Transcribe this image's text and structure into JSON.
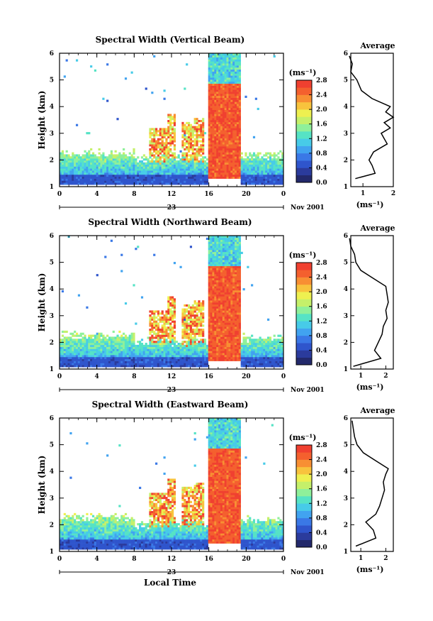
{
  "colorscale": {
    "colors": [
      "#23296b",
      "#2b3b9c",
      "#2f55cc",
      "#3a78e6",
      "#41a3f0",
      "#47cbe8",
      "#56e3c5",
      "#8ff09a",
      "#c5f06a",
      "#eef050",
      "#f8c33d",
      "#f88f33",
      "#f4602e",
      "#f04030"
    ],
    "edges": [
      0.0,
      0.2,
      0.4,
      0.6,
      0.8,
      1.0,
      1.2,
      1.4,
      1.6,
      1.8,
      2.0,
      2.2,
      2.4,
      2.6,
      2.8
    ]
  },
  "axis_labels": {
    "height": "Height (km)",
    "local_time": "Local Time",
    "date_day": "23",
    "date_month_year": "Nov 2001",
    "unit": "(ms⁻¹)",
    "average_title": "Average"
  },
  "chart_data": [
    {
      "type": "heatmap",
      "title": "Spectral Width (Vertical Beam)",
      "xlabel": "",
      "ylabel": "Height (km)",
      "x_range_hours": [
        0,
        24
      ],
      "x_ticks": [
        "0",
        "4",
        "8",
        "12",
        "16",
        "20",
        "0"
      ],
      "y_range_km": [
        1,
        6
      ],
      "y_ticks": [
        "1",
        "2",
        "3",
        "4",
        "5",
        "6"
      ],
      "z_range_ms": [
        0.0,
        2.8
      ],
      "colorbar_unit": "(ms⁻¹)",
      "colorbar_ticks": [
        "0.0",
        "0.4",
        "0.8",
        "1.2",
        "1.6",
        "2.0",
        "2.4",
        "2.8"
      ],
      "date_label": "23",
      "date_right_label": "Nov 2001",
      "profile": {
        "title": "Average",
        "xlabel": "(ms⁻¹)",
        "x_ticks": [
          "1",
          "2"
        ],
        "x_range": [
          0.6,
          2.0
        ],
        "height_km": [
          1.3,
          1.5,
          1.8,
          2.0,
          2.3,
          2.6,
          2.8,
          3.0,
          3.2,
          3.4,
          3.6,
          3.8,
          4.0,
          4.3,
          4.6,
          5.0,
          5.3,
          5.6,
          5.9
        ],
        "width_ms": [
          0.75,
          1.4,
          1.3,
          1.2,
          1.35,
          1.8,
          1.7,
          1.6,
          1.9,
          1.7,
          2.0,
          1.75,
          1.9,
          1.3,
          0.95,
          0.8,
          0.6,
          0.65,
          0.55
        ]
      }
    },
    {
      "type": "heatmap",
      "title": "Spectral Width (Northward Beam)",
      "xlabel": "",
      "ylabel": "Height (km)",
      "x_range_hours": [
        0,
        24
      ],
      "x_ticks": [
        "0",
        "4",
        "8",
        "12",
        "16",
        "20",
        "0"
      ],
      "y_range_km": [
        1,
        6
      ],
      "y_ticks": [
        "1",
        "2",
        "3",
        "4",
        "5",
        "6"
      ],
      "z_range_ms": [
        0.0,
        2.8
      ],
      "colorbar_unit": "(ms⁻¹)",
      "colorbar_ticks": [
        "0.0",
        "0.4",
        "0.8",
        "1.2",
        "1.6",
        "2.0",
        "2.4",
        "2.8"
      ],
      "date_label": "23",
      "date_right_label": "Nov 2001",
      "profile": {
        "title": "Average",
        "xlabel": "(ms⁻¹)",
        "x_ticks": [
          "1",
          "2"
        ],
        "x_range": [
          0.6,
          2.3
        ],
        "height_km": [
          1.1,
          1.4,
          1.7,
          2.0,
          2.3,
          2.6,
          2.9,
          3.2,
          3.5,
          3.8,
          4.1,
          4.4,
          4.7,
          5.0,
          5.3,
          5.6,
          5.9
        ],
        "width_ms": [
          0.7,
          1.8,
          1.55,
          1.7,
          1.85,
          1.9,
          2.05,
          2.0,
          2.1,
          2.05,
          2.0,
          1.5,
          1.0,
          0.8,
          0.75,
          0.6,
          0.55
        ]
      }
    },
    {
      "type": "heatmap",
      "title": "Spectral Width (Eastward Beam)",
      "xlabel": "Local Time",
      "ylabel": "Height (km)",
      "x_range_hours": [
        0,
        24
      ],
      "x_ticks": [
        "0",
        "4",
        "8",
        "12",
        "16",
        "20",
        "0"
      ],
      "y_range_km": [
        1,
        6
      ],
      "y_ticks": [
        "1",
        "2",
        "3",
        "4",
        "5",
        "6"
      ],
      "z_range_ms": [
        0.0,
        2.8
      ],
      "colorbar_unit": "(ms⁻¹)",
      "colorbar_ticks": [
        "0.0",
        "0.4",
        "0.8",
        "1.2",
        "1.6",
        "2.0",
        "2.4",
        "2.8"
      ],
      "date_label": "23",
      "date_right_label": "Nov 2001",
      "profile": {
        "title": "Average",
        "xlabel": "(ms⁻¹)",
        "x_ticks": [
          "1",
          "2"
        ],
        "x_range": [
          0.6,
          2.3
        ],
        "height_km": [
          1.2,
          1.5,
          1.8,
          2.1,
          2.4,
          2.7,
          3.0,
          3.3,
          3.6,
          3.9,
          4.1,
          4.4,
          4.7,
          5.0,
          5.3,
          5.6,
          5.9
        ],
        "width_ms": [
          0.8,
          1.6,
          1.5,
          1.2,
          1.6,
          1.75,
          1.85,
          1.95,
          1.9,
          2.0,
          2.1,
          1.6,
          1.1,
          0.85,
          0.75,
          0.7,
          0.65
        ]
      }
    }
  ]
}
